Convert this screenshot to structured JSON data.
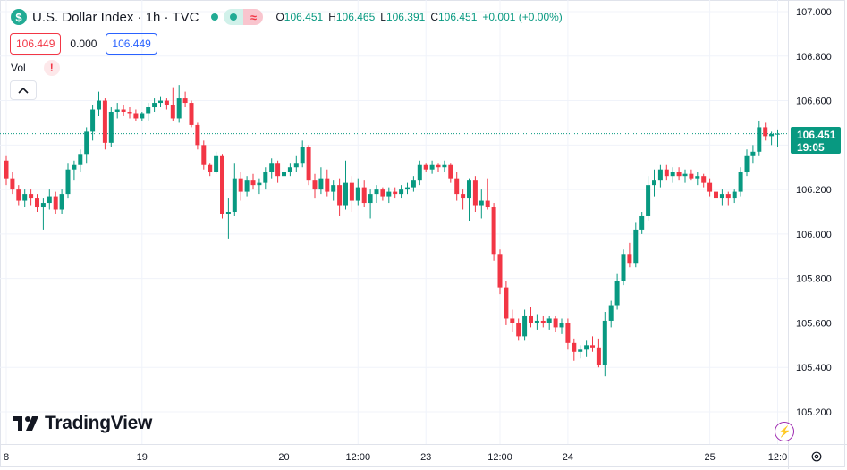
{
  "header": {
    "symbol_badge": "$",
    "title": "U.S. Dollar Index · 1h · TVC",
    "toggle_icon": "≈",
    "ohlc": {
      "o_label": "O",
      "o": "106.451",
      "h_label": "H",
      "h": "106.465",
      "l_label": "L",
      "l": "106.391",
      "c_label": "C",
      "c": "106.451",
      "change": "+0.001 (+0.00%)"
    }
  },
  "quote": {
    "sell": "106.449",
    "spread": "0.000",
    "buy": "106.449"
  },
  "volume": {
    "label": "Vol",
    "warning": "!"
  },
  "brand": {
    "name": "TradingView"
  },
  "price_tag": {
    "price": "106.451",
    "countdown": "19:05"
  },
  "colors": {
    "up": "#089981",
    "down": "#f23645",
    "grid": "#f0f3fa",
    "text": "#131722",
    "accent": "#2962ff"
  },
  "chart_data": {
    "type": "candlestick",
    "title": "U.S. Dollar Index · 1h · TVC",
    "ylim": [
      105.2,
      107.0
    ],
    "yticks": [
      105.2,
      105.4,
      105.6,
      105.8,
      106.0,
      106.2,
      106.4,
      106.6,
      106.8,
      107.0
    ],
    "ytick_labels": [
      "105.200",
      "105.400",
      "105.600",
      "105.800",
      "106.000",
      "106.200",
      "106.400",
      "106.600",
      "106.800",
      "107.000"
    ],
    "xtick_labels": [
      {
        "label": "8",
        "index": 0
      },
      {
        "label": "19",
        "index": 22
      },
      {
        "label": "20",
        "index": 45
      },
      {
        "label": "12:00",
        "index": 57
      },
      {
        "label": "23",
        "index": 68
      },
      {
        "label": "12:00",
        "index": 80
      },
      {
        "label": "24",
        "index": 91
      },
      {
        "label": "25",
        "index": 114
      },
      {
        "label": "12:0",
        "index": 125
      }
    ],
    "last_price": 106.451,
    "grid": true,
    "candles": [
      [
        106.33,
        106.35,
        106.22,
        106.25
      ],
      [
        106.25,
        106.28,
        106.18,
        106.2
      ],
      [
        106.2,
        106.22,
        106.13,
        106.15
      ],
      [
        106.15,
        106.2,
        106.12,
        106.18
      ],
      [
        106.18,
        106.2,
        106.13,
        106.16
      ],
      [
        106.16,
        106.18,
        106.1,
        106.12
      ],
      [
        106.12,
        106.16,
        106.02,
        106.14
      ],
      [
        106.14,
        106.2,
        106.11,
        106.17
      ],
      [
        106.17,
        106.19,
        106.09,
        106.11
      ],
      [
        106.11,
        106.2,
        106.09,
        106.18
      ],
      [
        106.18,
        106.32,
        106.16,
        106.29
      ],
      [
        106.29,
        106.33,
        106.24,
        106.31
      ],
      [
        106.31,
        106.38,
        106.28,
        106.36
      ],
      [
        106.36,
        106.48,
        106.32,
        106.46
      ],
      [
        106.46,
        106.58,
        106.42,
        106.56
      ],
      [
        106.56,
        106.64,
        106.53,
        106.6
      ],
      [
        106.6,
        106.61,
        106.38,
        106.41
      ],
      [
        106.41,
        106.57,
        106.39,
        106.55
      ],
      [
        106.55,
        106.59,
        106.52,
        106.56
      ],
      [
        106.56,
        106.58,
        106.53,
        106.55
      ],
      [
        106.55,
        106.57,
        106.52,
        106.54
      ],
      [
        106.54,
        106.56,
        106.51,
        106.52
      ],
      [
        106.52,
        106.55,
        106.51,
        106.54
      ],
      [
        106.54,
        106.59,
        106.51,
        106.57
      ],
      [
        106.57,
        106.61,
        106.55,
        106.59
      ],
      [
        106.59,
        106.62,
        106.57,
        106.6
      ],
      [
        106.6,
        106.61,
        106.56,
        106.58
      ],
      [
        106.58,
        106.66,
        106.51,
        106.52
      ],
      [
        106.52,
        106.67,
        106.5,
        106.61
      ],
      [
        106.61,
        106.64,
        106.57,
        106.59
      ],
      [
        106.59,
        106.6,
        106.48,
        106.49
      ],
      [
        106.49,
        106.5,
        106.38,
        106.4
      ],
      [
        106.4,
        106.42,
        106.29,
        106.31
      ],
      [
        106.31,
        106.32,
        106.26,
        106.28
      ],
      [
        106.28,
        106.37,
        106.27,
        106.35
      ],
      [
        106.35,
        106.36,
        106.07,
        106.09
      ],
      [
        106.09,
        106.16,
        105.98,
        106.1
      ],
      [
        106.1,
        106.32,
        106.08,
        106.25
      ],
      [
        106.25,
        106.28,
        106.15,
        106.19
      ],
      [
        106.19,
        106.26,
        106.17,
        106.24
      ],
      [
        106.24,
        106.27,
        106.2,
        106.22
      ],
      [
        106.22,
        106.25,
        106.18,
        106.23
      ],
      [
        106.23,
        106.3,
        106.2,
        106.28
      ],
      [
        106.28,
        106.34,
        106.25,
        106.32
      ],
      [
        106.32,
        106.33,
        106.23,
        106.26
      ],
      [
        106.26,
        106.3,
        106.23,
        106.28
      ],
      [
        106.28,
        106.32,
        106.26,
        106.3
      ],
      [
        106.3,
        106.35,
        106.28,
        106.32
      ],
      [
        106.32,
        106.42,
        106.3,
        106.39
      ],
      [
        106.39,
        106.4,
        106.22,
        106.24
      ],
      [
        106.24,
        106.27,
        106.16,
        106.2
      ],
      [
        106.2,
        106.3,
        106.18,
        106.25
      ],
      [
        106.25,
        106.29,
        106.17,
        106.19
      ],
      [
        106.19,
        106.24,
        106.15,
        106.22
      ],
      [
        106.22,
        106.25,
        106.08,
        106.13
      ],
      [
        106.13,
        106.33,
        106.11,
        106.23
      ],
      [
        106.23,
        106.26,
        106.1,
        106.15
      ],
      [
        106.15,
        106.25,
        106.13,
        106.21
      ],
      [
        106.21,
        106.24,
        106.12,
        106.14
      ],
      [
        106.14,
        106.2,
        106.07,
        106.18
      ],
      [
        106.18,
        106.22,
        106.14,
        106.2
      ],
      [
        106.2,
        106.21,
        106.15,
        106.17
      ],
      [
        106.17,
        106.21,
        106.14,
        106.19
      ],
      [
        106.19,
        106.21,
        106.16,
        106.18
      ],
      [
        106.18,
        106.22,
        106.16,
        106.2
      ],
      [
        106.2,
        106.23,
        106.18,
        106.21
      ],
      [
        106.21,
        106.26,
        106.19,
        106.24
      ],
      [
        106.24,
        106.33,
        106.22,
        106.31
      ],
      [
        106.31,
        106.32,
        106.28,
        106.29
      ],
      [
        106.29,
        106.33,
        106.27,
        106.31
      ],
      [
        106.31,
        106.32,
        106.28,
        106.3
      ],
      [
        106.3,
        106.33,
        106.28,
        106.31
      ],
      [
        106.31,
        106.32,
        106.23,
        106.25
      ],
      [
        106.25,
        106.28,
        106.15,
        106.18
      ],
      [
        106.18,
        106.2,
        106.11,
        106.16
      ],
      [
        106.16,
        106.25,
        106.06,
        106.24
      ],
      [
        106.24,
        106.26,
        106.1,
        106.13
      ],
      [
        106.13,
        106.2,
        106.07,
        106.15
      ],
      [
        106.15,
        106.25,
        106.11,
        106.12
      ],
      [
        106.12,
        106.14,
        105.88,
        105.91
      ],
      [
        105.91,
        105.93,
        105.73,
        105.76
      ],
      [
        105.76,
        105.79,
        105.59,
        105.62
      ],
      [
        105.62,
        105.66,
        105.56,
        105.6
      ],
      [
        105.6,
        105.62,
        105.52,
        105.54
      ],
      [
        105.54,
        105.66,
        105.52,
        105.63
      ],
      [
        105.63,
        105.67,
        105.58,
        105.6
      ],
      [
        105.6,
        105.64,
        105.57,
        105.61
      ],
      [
        105.61,
        105.63,
        105.58,
        105.6
      ],
      [
        105.6,
        105.63,
        105.57,
        105.62
      ],
      [
        105.62,
        105.63,
        105.56,
        105.58
      ],
      [
        105.58,
        105.62,
        105.55,
        105.6
      ],
      [
        105.6,
        105.62,
        105.48,
        105.51
      ],
      [
        105.51,
        105.53,
        105.43,
        105.47
      ],
      [
        105.47,
        105.5,
        105.44,
        105.48
      ],
      [
        105.48,
        105.52,
        105.45,
        105.5
      ],
      [
        105.5,
        105.54,
        105.47,
        105.49
      ],
      [
        105.49,
        105.53,
        105.4,
        105.41
      ],
      [
        105.41,
        105.65,
        105.36,
        105.61
      ],
      [
        105.61,
        105.7,
        105.58,
        105.68
      ],
      [
        105.68,
        105.82,
        105.66,
        105.79
      ],
      [
        105.79,
        105.93,
        105.77,
        105.91
      ],
      [
        105.91,
        105.96,
        105.85,
        105.87
      ],
      [
        105.87,
        106.05,
        105.85,
        106.02
      ],
      [
        106.02,
        106.1,
        106.0,
        106.08
      ],
      [
        106.08,
        106.26,
        106.06,
        106.22
      ],
      [
        106.22,
        106.29,
        106.17,
        106.24
      ],
      [
        106.24,
        106.31,
        106.21,
        106.29
      ],
      [
        106.29,
        106.31,
        106.24,
        106.26
      ],
      [
        106.26,
        106.3,
        106.23,
        106.28
      ],
      [
        106.28,
        106.3,
        106.24,
        106.26
      ],
      [
        106.26,
        106.29,
        106.23,
        106.27
      ],
      [
        106.27,
        106.29,
        106.24,
        106.25
      ],
      [
        106.25,
        106.28,
        106.22,
        106.26
      ],
      [
        106.26,
        106.27,
        106.21,
        106.23
      ],
      [
        106.23,
        106.25,
        106.17,
        106.19
      ],
      [
        106.19,
        106.2,
        106.14,
        106.16
      ],
      [
        106.16,
        106.2,
        106.13,
        106.18
      ],
      [
        106.18,
        106.19,
        106.13,
        106.16
      ],
      [
        106.16,
        106.2,
        106.14,
        106.19
      ],
      [
        106.19,
        106.3,
        106.17,
        106.28
      ],
      [
        106.28,
        106.38,
        106.26,
        106.35
      ],
      [
        106.35,
        106.4,
        106.32,
        106.37
      ],
      [
        106.37,
        106.51,
        106.35,
        106.48
      ],
      [
        106.48,
        106.5,
        106.42,
        106.44
      ],
      [
        106.44,
        106.46,
        106.4,
        106.45
      ],
      [
        106.45,
        106.47,
        106.39,
        106.451
      ]
    ]
  }
}
